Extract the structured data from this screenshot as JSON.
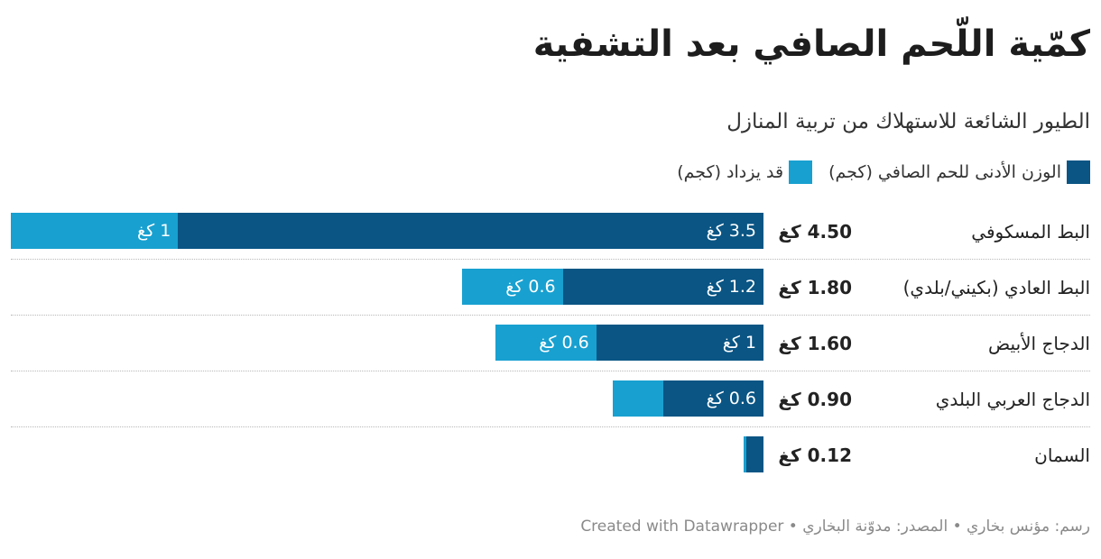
{
  "chart_data": {
    "type": "bar",
    "orientation": "horizontal",
    "stacked": true,
    "title": "كمّية اللّحم الصافي بعد التشفية",
    "subtitle": "الطيور الشائعة للاستهلاك من تربية المنازل",
    "categories": [
      "البط المسكوفي",
      "البط العادي (بكيني/بلدي)",
      "الدجاج الأبيض",
      "الدجاج العربي البلدي",
      "السمان"
    ],
    "totals": [
      4.5,
      1.8,
      1.6,
      0.9,
      0.12
    ],
    "total_labels": [
      "4.50 كغ",
      "1.80 كغ",
      "1.60 كغ",
      "0.90 كغ",
      "0.12 كغ"
    ],
    "series": [
      {
        "name": "الوزن الأدنى للحم الصافي (كجم)",
        "color": "#0a5584",
        "values": [
          3.5,
          1.2,
          1.0,
          0.6,
          0.1
        ],
        "value_labels": [
          "3.5 كغ",
          "1.2 كغ",
          "1 كغ",
          "0.6 كغ",
          ""
        ]
      },
      {
        "name": "قد يزداد (كجم)",
        "color": "#18a0d0",
        "values": [
          1.0,
          0.6,
          0.6,
          0.3,
          0.02
        ],
        "value_labels": [
          "1 كغ",
          "0.6 كغ",
          "0.6 كغ",
          "",
          ""
        ]
      }
    ],
    "xlim": [
      0,
      4.5
    ],
    "legend_position": "top-right",
    "grid": false,
    "footer": "رسم: مؤنس بخاري • المصدر: مدوّنة البخاري • Created with Datawrapper"
  }
}
